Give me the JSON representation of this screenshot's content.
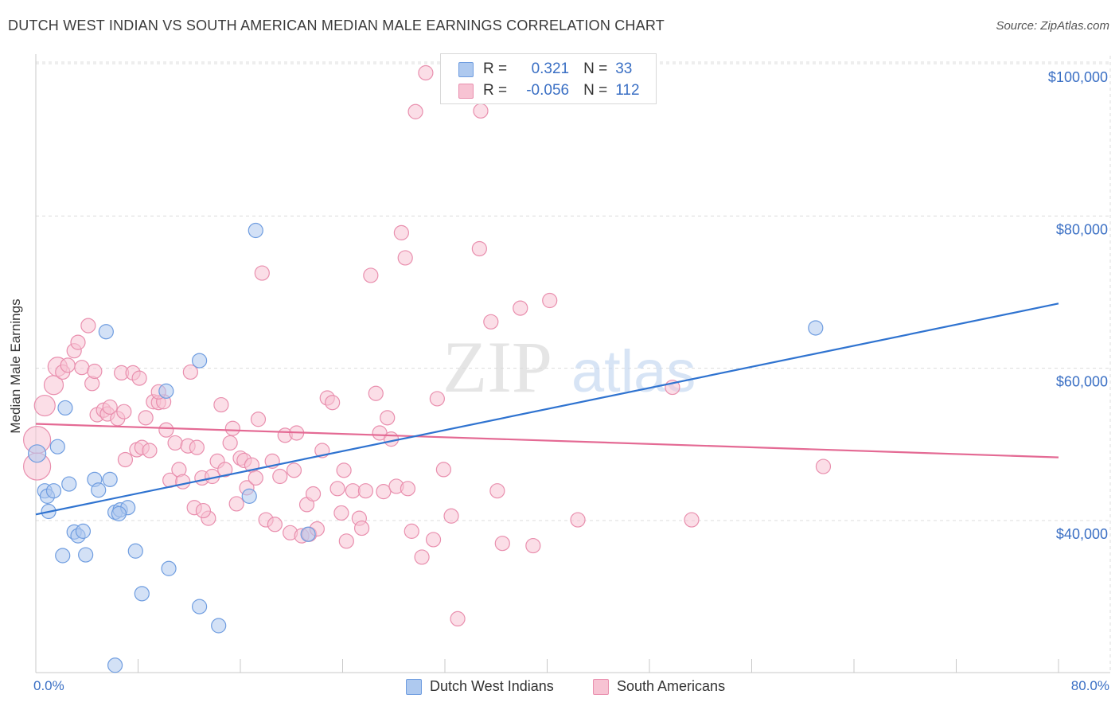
{
  "title": "DUTCH WEST INDIAN VS SOUTH AMERICAN MEDIAN MALE EARNINGS CORRELATION CHART",
  "source": "Source: ZipAtlas.com",
  "watermark": {
    "zip": "ZIP",
    "atlas": "atlas"
  },
  "legend_stats": [
    {
      "r_label": "R =",
      "r_value": "0.321",
      "n_label": "N =",
      "n_value": "33"
    },
    {
      "r_label": "R =",
      "r_value": "-0.056",
      "n_label": "N =",
      "n_value": "112"
    }
  ],
  "colors": {
    "blue_fill": "#aec9ef",
    "blue_stroke": "#6f9de0",
    "blue_line": "#2f73d0",
    "pink_fill": "#f7c3d3",
    "pink_stroke": "#e98fae",
    "pink_line": "#e46a94",
    "tick_label": "#3a6fc4",
    "grid": "#dcdcdc"
  },
  "chart_data": {
    "type": "scatter",
    "title": "DUTCH WEST INDIAN VS SOUTH AMERICAN MEDIAN MALE EARNINGS CORRELATION CHART",
    "xlabel": "",
    "ylabel": "Median Male Earnings",
    "xlim": [
      0,
      80
    ],
    "ylim": [
      20000,
      102000
    ],
    "x_tick_labels": [
      "0.0%",
      "80.0%"
    ],
    "y_ticks": [
      40000,
      60000,
      80000,
      100000
    ],
    "y_tick_labels": [
      "$40,000",
      "$60,000",
      "$80,000",
      "$100,000"
    ],
    "grid": true,
    "legend_placement": "top-center and bottom",
    "series": [
      {
        "name": "Dutch West Indians",
        "color": "#6f9de0",
        "trend": {
          "x": [
            0,
            80
          ],
          "y": [
            40800,
            68500
          ]
        },
        "points": [
          [
            0.1,
            48800
          ],
          [
            0.7,
            43900
          ],
          [
            0.9,
            43200
          ],
          [
            1.0,
            41200
          ],
          [
            1.4,
            43900
          ],
          [
            1.7,
            49700
          ],
          [
            2.1,
            35400
          ],
          [
            2.3,
            54800
          ],
          [
            2.6,
            44800
          ],
          [
            3.0,
            38500
          ],
          [
            3.3,
            38000
          ],
          [
            3.7,
            38600
          ],
          [
            3.9,
            35500
          ],
          [
            4.6,
            45400
          ],
          [
            4.9,
            44000
          ],
          [
            5.5,
            64800
          ],
          [
            5.8,
            45400
          ],
          [
            6.2,
            41100
          ],
          [
            6.6,
            41400
          ],
          [
            7.2,
            41700
          ],
          [
            7.8,
            36000
          ],
          [
            8.3,
            30400
          ],
          [
            10.4,
            33700
          ],
          [
            10.2,
            57000
          ],
          [
            12.8,
            61000
          ],
          [
            12.8,
            28700
          ],
          [
            14.3,
            26200
          ],
          [
            16.7,
            43200
          ],
          [
            17.2,
            78100
          ],
          [
            21.3,
            38200
          ],
          [
            61.0,
            65300
          ],
          [
            6.2,
            21000
          ],
          [
            6.5,
            40900
          ]
        ]
      },
      {
        "name": "South Americans",
        "color": "#e98fae",
        "trend": {
          "x": [
            0,
            80
          ],
          "y": [
            52700,
            48300
          ]
        },
        "points": [
          [
            0.1,
            50600
          ],
          [
            0.1,
            47100
          ],
          [
            0.7,
            55100
          ],
          [
            1.4,
            57800
          ],
          [
            1.7,
            60200
          ],
          [
            2.1,
            59500
          ],
          [
            2.5,
            60400
          ],
          [
            3.0,
            62300
          ],
          [
            3.3,
            63400
          ],
          [
            3.6,
            60100
          ],
          [
            4.1,
            65600
          ],
          [
            4.4,
            58000
          ],
          [
            4.6,
            59600
          ],
          [
            4.8,
            53900
          ],
          [
            5.3,
            54500
          ],
          [
            5.6,
            54000
          ],
          [
            5.8,
            54900
          ],
          [
            6.4,
            53400
          ],
          [
            6.7,
            59400
          ],
          [
            6.9,
            54300
          ],
          [
            7.0,
            48000
          ],
          [
            7.6,
            59400
          ],
          [
            7.9,
            49300
          ],
          [
            8.1,
            58700
          ],
          [
            8.3,
            49600
          ],
          [
            8.6,
            53500
          ],
          [
            8.9,
            49200
          ],
          [
            9.2,
            55600
          ],
          [
            9.6,
            55500
          ],
          [
            10.0,
            55600
          ],
          [
            10.2,
            51900
          ],
          [
            10.5,
            45300
          ],
          [
            10.9,
            50200
          ],
          [
            11.2,
            46700
          ],
          [
            11.5,
            45100
          ],
          [
            11.9,
            49800
          ],
          [
            12.1,
            59500
          ],
          [
            12.4,
            41700
          ],
          [
            12.6,
            49600
          ],
          [
            13.0,
            45600
          ],
          [
            13.5,
            40300
          ],
          [
            13.8,
            45800
          ],
          [
            14.2,
            47800
          ],
          [
            14.5,
            55200
          ],
          [
            14.8,
            46700
          ],
          [
            15.2,
            50200
          ],
          [
            15.4,
            52100
          ],
          [
            15.7,
            42200
          ],
          [
            16.0,
            48200
          ],
          [
            16.3,
            47900
          ],
          [
            16.5,
            44300
          ],
          [
            16.9,
            47300
          ],
          [
            17.2,
            45600
          ],
          [
            17.4,
            53300
          ],
          [
            17.7,
            72500
          ],
          [
            18.0,
            40100
          ],
          [
            18.5,
            47800
          ],
          [
            18.7,
            39500
          ],
          [
            19.1,
            45800
          ],
          [
            19.5,
            51200
          ],
          [
            19.9,
            38400
          ],
          [
            20.2,
            46600
          ],
          [
            20.4,
            51500
          ],
          [
            20.8,
            38000
          ],
          [
            21.2,
            42100
          ],
          [
            21.4,
            38200
          ],
          [
            21.7,
            43500
          ],
          [
            22.0,
            38900
          ],
          [
            22.4,
            49200
          ],
          [
            22.8,
            56100
          ],
          [
            23.2,
            55500
          ],
          [
            23.6,
            44200
          ],
          [
            23.9,
            41000
          ],
          [
            24.1,
            46600
          ],
          [
            24.3,
            37300
          ],
          [
            24.8,
            43900
          ],
          [
            25.3,
            40300
          ],
          [
            25.5,
            39000
          ],
          [
            25.8,
            43900
          ],
          [
            26.2,
            72200
          ],
          [
            26.6,
            56700
          ],
          [
            26.9,
            51500
          ],
          [
            27.2,
            43800
          ],
          [
            27.5,
            53500
          ],
          [
            27.8,
            50700
          ],
          [
            28.2,
            44500
          ],
          [
            28.6,
            77800
          ],
          [
            28.9,
            74500
          ],
          [
            29.1,
            44200
          ],
          [
            29.4,
            38600
          ],
          [
            29.7,
            93700
          ],
          [
            30.2,
            35200
          ],
          [
            30.5,
            98800
          ],
          [
            31.1,
            37500
          ],
          [
            31.4,
            56000
          ],
          [
            31.9,
            46700
          ],
          [
            32.5,
            40600
          ],
          [
            33.0,
            27100
          ],
          [
            34.7,
            75700
          ],
          [
            34.8,
            93800
          ],
          [
            35.6,
            66100
          ],
          [
            36.1,
            43900
          ],
          [
            36.5,
            37000
          ],
          [
            37.9,
            67900
          ],
          [
            38.9,
            36700
          ],
          [
            40.2,
            68900
          ],
          [
            42.4,
            40100
          ],
          [
            49.8,
            57500
          ],
          [
            51.3,
            40100
          ],
          [
            61.6,
            47100
          ],
          [
            13.1,
            41300
          ],
          [
            9.6,
            56900
          ]
        ]
      }
    ]
  },
  "bottom_legend": [
    "Dutch West Indians",
    "South Americans"
  ]
}
